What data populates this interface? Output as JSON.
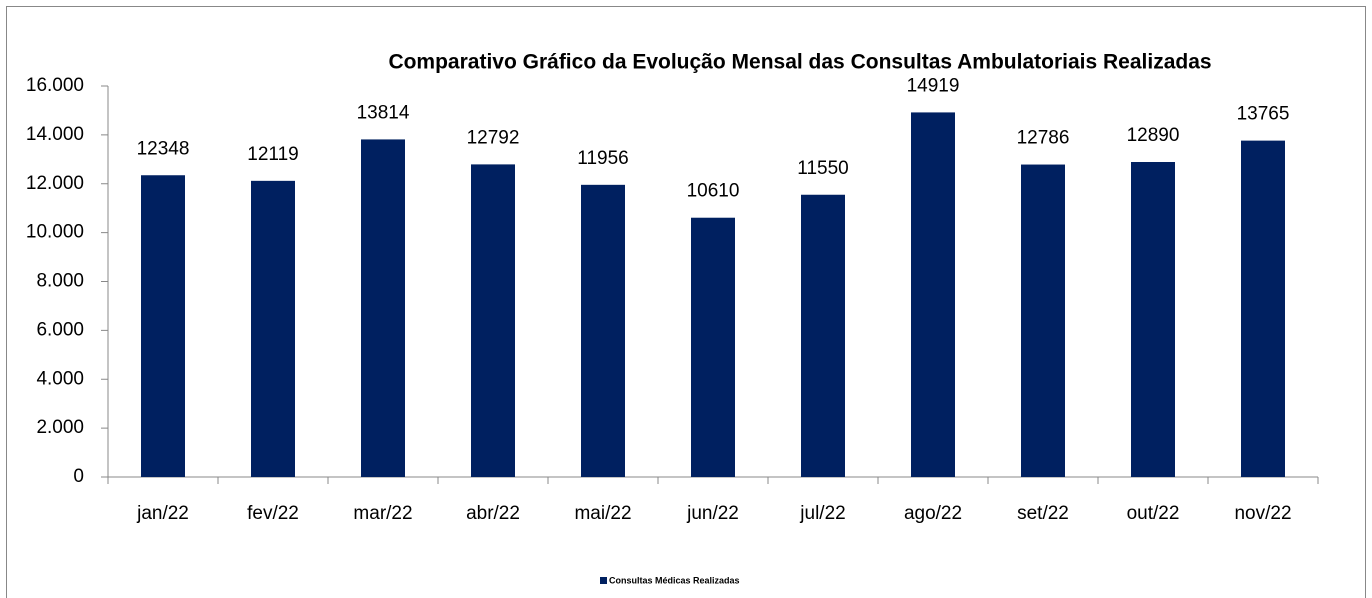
{
  "chart_data": {
    "type": "bar",
    "title": "Comparativo Gráfico da Evolução Mensal das Consultas Ambulatoriais Realizadas",
    "categories": [
      "jan/22",
      "fev/22",
      "mar/22",
      "abr/22",
      "mai/22",
      "jun/22",
      "jul/22",
      "ago/22",
      "set/22",
      "out/22",
      "nov/22"
    ],
    "series": [
      {
        "name": "Consultas Médicas Realizadas",
        "color": "#002060",
        "values": [
          12348,
          12119,
          13814,
          12792,
          11956,
          10610,
          11550,
          14919,
          12786,
          12890,
          13765
        ]
      }
    ],
    "ylim": [
      0,
      16000
    ],
    "yticks": [
      0,
      {
        "value": 2000,
        "label": "2.000"
      },
      {
        "value": 4000,
        "label": "4.000"
      },
      {
        "value": 6000,
        "label": "6.000"
      },
      {
        "value": 8000,
        "label": "8.000"
      },
      {
        "value": 10000,
        "label": "10.000"
      },
      {
        "value": 12000,
        "label": "12.000"
      },
      {
        "value": 14000,
        "label": "14.000"
      },
      {
        "value": 16000,
        "label": "16.000"
      }
    ],
    "grid": false,
    "legend": "bottom"
  }
}
